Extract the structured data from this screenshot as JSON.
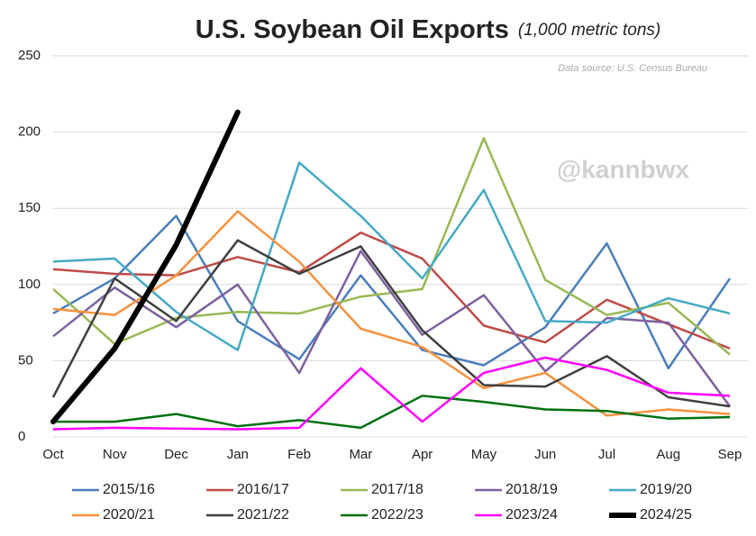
{
  "chart_data": {
    "type": "line",
    "title": "U.S. Soybean Oil Exports",
    "subtitle": "(1,000 metric tons)",
    "annotations": [
      "Data source: U.S. Census Bureau",
      "@kannbwx"
    ],
    "categories": [
      "Oct",
      "Nov",
      "Dec",
      "Jan",
      "Feb",
      "Mar",
      "Apr",
      "May",
      "Jun",
      "Jul",
      "Aug",
      "Sep"
    ],
    "ylim": [
      0,
      250
    ],
    "yticks": [
      0,
      50,
      100,
      150,
      200,
      250
    ],
    "grid": true,
    "legend": "bottom",
    "series": [
      {
        "name": "2015/16",
        "color": "#4a7ebb",
        "linewidth": 2.5,
        "values": [
          81,
          104,
          145,
          76,
          51,
          106,
          57,
          47,
          72,
          127,
          45,
          104
        ]
      },
      {
        "name": "2016/17",
        "color": "#be4b48",
        "linewidth": 2.5,
        "values": [
          110,
          107,
          106,
          118,
          108,
          134,
          117,
          73,
          62,
          90,
          74,
          58
        ]
      },
      {
        "name": "2017/18",
        "color": "#98b954",
        "linewidth": 2.5,
        "values": [
          97,
          61,
          78,
          82,
          81,
          92,
          97,
          196,
          103,
          80,
          88,
          54
        ]
      },
      {
        "name": "2018/19",
        "color": "#7d60a0",
        "linewidth": 2.5,
        "values": [
          66,
          98,
          72,
          100,
          42,
          122,
          67,
          93,
          43,
          78,
          75,
          20
        ]
      },
      {
        "name": "2019/20",
        "color": "#46aac5",
        "linewidth": 2.5,
        "values": [
          115,
          117,
          82,
          57,
          180,
          145,
          104,
          162,
          76,
          75,
          91,
          81
        ]
      },
      {
        "name": "2020/21",
        "color": "#f69240",
        "linewidth": 2.5,
        "values": [
          84,
          80,
          106,
          148,
          115,
          71,
          59,
          32,
          42,
          14,
          18,
          15
        ]
      },
      {
        "name": "2021/22",
        "color": "#3f3f3f",
        "linewidth": 2.5,
        "values": [
          26,
          104,
          76,
          129,
          107,
          125,
          70,
          34,
          33,
          53,
          26,
          20
        ]
      },
      {
        "name": "2022/23",
        "color": "#007010",
        "linewidth": 2.5,
        "values": [
          10,
          10,
          15,
          7,
          11,
          6,
          27,
          23,
          18,
          17,
          12,
          13
        ]
      },
      {
        "name": "2023/24",
        "color": "#ff00ff",
        "linewidth": 2.5,
        "values": [
          5,
          6,
          5.5,
          5,
          6,
          45,
          10,
          42,
          52,
          44,
          29,
          27
        ]
      },
      {
        "name": "2024/25",
        "color": "#000000",
        "linewidth": 6,
        "values": [
          10,
          58,
          126,
          213,
          null,
          null,
          null,
          null,
          null,
          null,
          null,
          null
        ]
      }
    ]
  }
}
